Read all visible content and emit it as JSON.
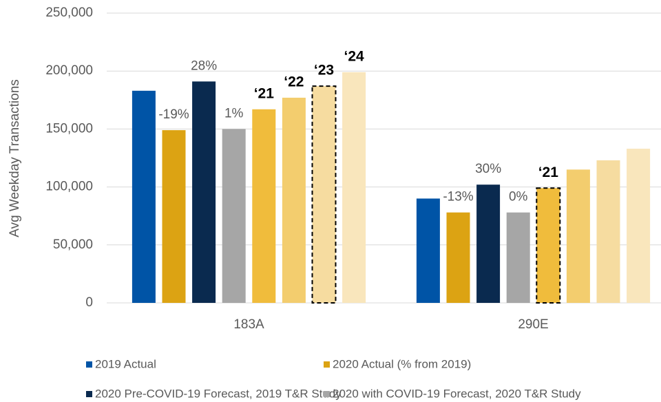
{
  "chart_data": {
    "type": "bar",
    "y_label": "Avg Weekday Transactions",
    "categories": [
      "183A",
      "290E"
    ],
    "series": [
      {
        "name": "2019 Actual",
        "color": "#0054a6",
        "values": [
          183000,
          90000
        ]
      },
      {
        "name": "2020 Actual (% from 2019)",
        "color": "#dca313",
        "values": [
          149000,
          78000
        ],
        "annotations": [
          "-19%",
          "-13%"
        ]
      },
      {
        "name": "2020 Pre-COVID-19 Forecast, 2019 T&R Study",
        "color": "#0a2a4f",
        "values": [
          191000,
          102000
        ],
        "annotations": [
          "28%",
          "30%"
        ]
      },
      {
        "name": "2020 with COVID-19 Forecast, 2020 T&R Study",
        "color": "#a6a6a6",
        "values": [
          150000,
          78000
        ],
        "annotations": [
          "1%",
          "0%"
        ]
      },
      {
        "color": "#f0bc3c",
        "values": [
          167000,
          99000
        ],
        "annotations": [
          "‘21",
          "‘21"
        ],
        "outlined": [
          false,
          true
        ]
      },
      {
        "color": "#f3cd6e",
        "values": [
          177000,
          115000
        ],
        "annotations": [
          "‘22",
          null
        ]
      },
      {
        "color": "#f6dca0",
        "values": [
          187000,
          123000
        ],
        "annotations": [
          "‘23",
          null
        ],
        "outlined": [
          true,
          false
        ]
      },
      {
        "color": "#f9e6bc",
        "values": [
          199000,
          133000
        ],
        "annotations": [
          "‘24",
          null
        ]
      }
    ],
    "ylim": [
      0,
      250000
    ],
    "yticks": [
      {
        "value": 0,
        "label": "0"
      },
      {
        "value": 50000,
        "label": "50,000"
      },
      {
        "value": 100000,
        "label": "100,000"
      },
      {
        "value": 150000,
        "label": "150,000"
      },
      {
        "value": 200000,
        "label": "200,000"
      },
      {
        "value": 250000,
        "label": "250,000"
      }
    ],
    "grid": true
  }
}
